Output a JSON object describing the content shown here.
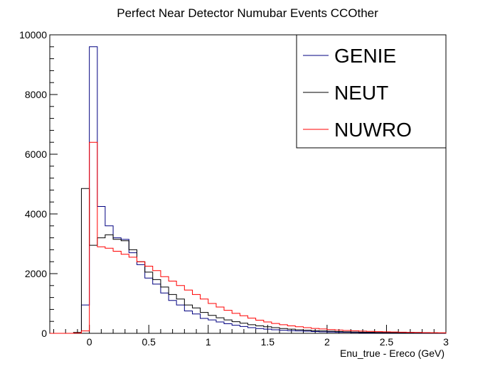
{
  "chart_data": {
    "type": "line",
    "histogram": true,
    "title": "Perfect Near Detector Numubar Events CCOther",
    "xlabel": "Enu_true - Ereco (GeV)",
    "ylabel": "",
    "xlim": [
      -0.333,
      3.0
    ],
    "ylim": [
      0,
      10000
    ],
    "x_ticks": [
      0,
      0.5,
      1,
      1.5,
      2,
      2.5,
      3
    ],
    "x_tick_labels": [
      "0",
      "0.5",
      "1",
      "1.5",
      "2",
      "2.5",
      "3"
    ],
    "y_ticks": [
      0,
      2000,
      4000,
      6000,
      8000,
      10000
    ],
    "y_tick_labels": [
      "0",
      "2000",
      "4000",
      "6000",
      "8000",
      "10000"
    ],
    "bin_edges": [
      -0.333,
      -0.267,
      -0.2,
      -0.133,
      -0.067,
      0,
      0.067,
      0.133,
      0.2,
      0.267,
      0.333,
      0.4,
      0.467,
      0.533,
      0.6,
      0.667,
      0.733,
      0.8,
      0.867,
      0.933,
      1.0,
      1.067,
      1.133,
      1.2,
      1.267,
      1.333,
      1.4,
      1.467,
      1.533,
      1.6,
      1.667,
      1.733,
      1.8,
      1.867,
      1.933,
      2.0,
      2.067,
      2.133,
      2.2,
      2.267,
      2.333,
      2.4,
      2.467,
      2.533,
      2.6,
      2.667,
      2.733,
      2.8,
      2.867,
      2.933,
      3.0
    ],
    "legend_position": "top-right",
    "series": [
      {
        "name": "GENIE",
        "color": "#000080",
        "values": [
          0,
          0,
          0,
          20,
          950,
          9600,
          4250,
          3600,
          3200,
          3150,
          2700,
          2300,
          1850,
          1650,
          1350,
          1100,
          950,
          750,
          650,
          500,
          450,
          380,
          320,
          270,
          230,
          190,
          160,
          140,
          120,
          100,
          90,
          80,
          70,
          60,
          50,
          45,
          40,
          35,
          30,
          25,
          22,
          20,
          18,
          16,
          14,
          12,
          10,
          9,
          8,
          7
        ]
      },
      {
        "name": "NEUT",
        "color": "#000000",
        "values": [
          0,
          0,
          0,
          30,
          4850,
          2950,
          3200,
          3300,
          3150,
          3100,
          2800,
          2400,
          2050,
          1800,
          1550,
          1300,
          1150,
          950,
          850,
          700,
          600,
          520,
          450,
          390,
          340,
          290,
          250,
          220,
          190,
          160,
          140,
          120,
          105,
          90,
          80,
          70,
          60,
          52,
          45,
          40,
          35,
          30,
          26,
          23,
          20,
          18,
          16,
          14,
          12,
          10
        ]
      },
      {
        "name": "NUWRO",
        "color": "#ff0000",
        "values": [
          0,
          0,
          0,
          10,
          80,
          6400,
          2900,
          2850,
          2750,
          2650,
          2550,
          2400,
          2250,
          2100,
          1900,
          1750,
          1600,
          1450,
          1300,
          1150,
          1000,
          880,
          770,
          670,
          590,
          510,
          440,
          380,
          330,
          290,
          250,
          220,
          190,
          165,
          145,
          125,
          110,
          95,
          85,
          75,
          65,
          57,
          50,
          44,
          38,
          33,
          29,
          25,
          22,
          19
        ]
      }
    ]
  }
}
